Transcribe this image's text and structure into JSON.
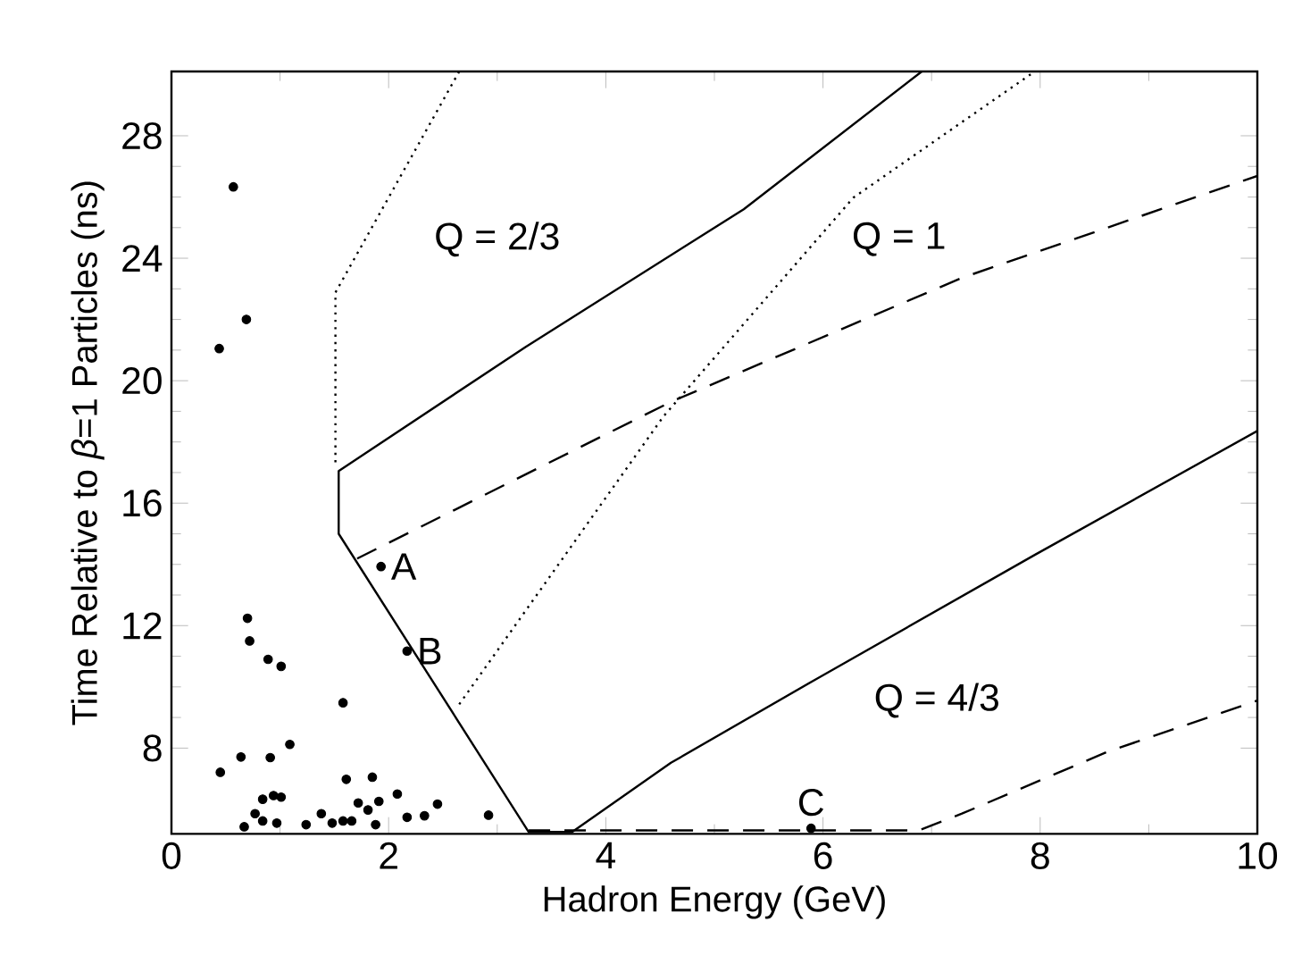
{
  "chart_data": {
    "type": "line",
    "xlabel": "Hadron Energy (GeV)",
    "ylabel": "Time Relative to *β*=1 Particles (ns)",
    "xlim": [
      0,
      10
    ],
    "ylim": [
      5.2,
      30.1
    ],
    "xticks": [
      0,
      2,
      4,
      6,
      8,
      10
    ],
    "yticks": [
      8,
      12,
      16,
      20,
      24,
      28
    ],
    "series": [
      {
        "color": "#000000",
        "line_style": "solid",
        "x": [
          6.91,
          5.27,
          3.26,
          1.54,
          1.54,
          3.29,
          3.69,
          4.6,
          5.94,
          7.95,
          10
        ],
        "values": [
          30.1,
          25.6,
          21.1,
          17.05,
          15.0,
          5.26,
          5.26,
          7.52,
          10.26,
          14.31,
          18.36
        ]
      },
      {
        "color": "#000000",
        "line_style": "dashed",
        "x": [
          1.71,
          4.6,
          7.28,
          10
        ],
        "values": [
          14.19,
          19.31,
          23.36,
          26.69
        ]
      },
      {
        "color": "#000000",
        "line_style": "dashed",
        "x": [
          3.29,
          6.88,
          7.28,
          8.62,
          10
        ],
        "values": [
          5.31,
          5.31,
          5.86,
          7.88,
          9.55
        ]
      },
      {
        "color": "#000000",
        "line_style": "dotted",
        "x": [
          2.65,
          1.51,
          1.51
        ],
        "values": [
          30.1,
          22.88,
          17.29
        ]
      },
      {
        "color": "#000000",
        "line_style": "dotted",
        "x": [
          2.65,
          4.53,
          6.28,
          7.95
        ],
        "values": [
          9.43,
          18.83,
          25.98,
          30.1
        ]
      },
      {
        "type": "scatter",
        "color": "#000000",
        "marker": "circle",
        "x": [
          0.57,
          0.69,
          0.44,
          1.93,
          2.17,
          0.7,
          0.72,
          0.89,
          1.01,
          1.58,
          0.45,
          0.64,
          0.91,
          1.09,
          1.61,
          1.85,
          0.84,
          0.94,
          1.01,
          0.77,
          0.84,
          0.97,
          0.67,
          1.24,
          1.38,
          1.48,
          1.58,
          1.66,
          1.72,
          1.81,
          1.88,
          1.91,
          2.08,
          2.17,
          2.33,
          2.45,
          2.92,
          5.89
        ],
        "values": [
          26.33,
          22.0,
          21.05,
          13.93,
          11.17,
          12.24,
          11.5,
          10.9,
          10.67,
          9.48,
          7.21,
          7.71,
          7.69,
          8.12,
          6.98,
          7.05,
          6.33,
          6.45,
          6.4,
          5.86,
          5.62,
          5.55,
          5.43,
          5.5,
          5.86,
          5.55,
          5.62,
          5.62,
          6.21,
          5.98,
          5.5,
          6.26,
          6.5,
          5.74,
          5.79,
          6.17,
          5.81,
          5.38
        ]
      }
    ],
    "annotations": [
      {
        "text": "A",
        "x": 1.93,
        "y": 13.93
      },
      {
        "text": "B",
        "x": 2.17,
        "y": 11.17
      },
      {
        "text": "C",
        "x": 5.89,
        "y": 5.38
      },
      "Q = 2/3",
      "Q = 1",
      "Q = 4/3"
    ]
  }
}
